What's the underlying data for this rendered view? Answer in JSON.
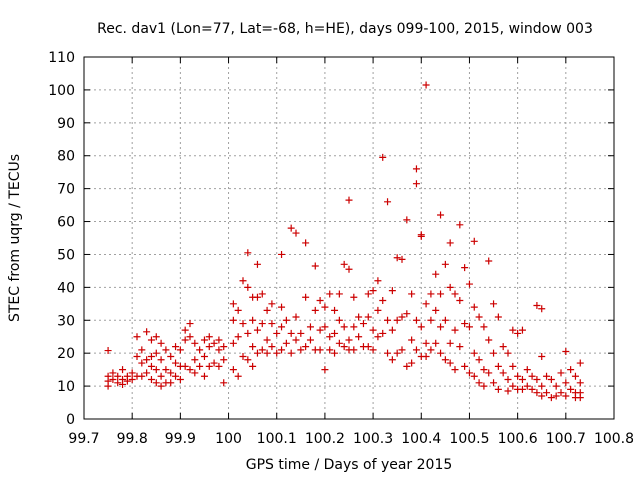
{
  "chart_data": {
    "type": "scatter",
    "title": "Rec. dav1 (Lon=77, Lat=-68, h=HE), days 099-100, 2015, window 003",
    "xlabel": "GPS time / Days of year 2015",
    "ylabel": "STEC from uqrg / TECUs",
    "xlim": [
      99.7,
      100.8
    ],
    "ylim": [
      0,
      110
    ],
    "xticks": [
      99.7,
      99.8,
      99.9,
      100,
      100.1,
      100.2,
      100.3,
      100.4,
      100.5,
      100.6,
      100.7,
      100.8
    ],
    "xtick_labels": [
      "99.7",
      "99.8",
      "99.9",
      "100",
      "100.1",
      "100.2",
      "100.3",
      "100.4",
      "100.5",
      "100.6",
      "100.7",
      "100.8"
    ],
    "yticks": [
      0,
      10,
      20,
      30,
      40,
      50,
      60,
      70,
      80,
      90,
      100,
      110
    ],
    "ytick_labels": [
      "0",
      "10",
      "20",
      "30",
      "40",
      "50",
      "60",
      "70",
      "80",
      "90",
      "100",
      "110"
    ],
    "grid": true,
    "marker": "plus",
    "color": "#cc0000",
    "points": [
      [
        99.75,
        20.8
      ],
      [
        99.75,
        13
      ],
      [
        99.75,
        11.5
      ],
      [
        99.75,
        10
      ],
      [
        99.76,
        14
      ],
      [
        99.76,
        12
      ],
      [
        99.77,
        13
      ],
      [
        99.77,
        11
      ],
      [
        99.78,
        15
      ],
      [
        99.78,
        12
      ],
      [
        99.78,
        10.5
      ],
      [
        99.79,
        13
      ],
      [
        99.79,
        11.5
      ],
      [
        99.8,
        14
      ],
      [
        99.8,
        12
      ],
      [
        99.81,
        25
      ],
      [
        99.81,
        19
      ],
      [
        99.81,
        13
      ],
      [
        99.82,
        21
      ],
      [
        99.82,
        17
      ],
      [
        99.82,
        13
      ],
      [
        99.83,
        26.5
      ],
      [
        99.83,
        18
      ],
      [
        99.83,
        14
      ],
      [
        99.84,
        24
      ],
      [
        99.84,
        19
      ],
      [
        99.84,
        16
      ],
      [
        99.84,
        12
      ],
      [
        99.85,
        25
      ],
      [
        99.85,
        20
      ],
      [
        99.85,
        15
      ],
      [
        99.85,
        11
      ],
      [
        99.86,
        23
      ],
      [
        99.86,
        18
      ],
      [
        99.86,
        13
      ],
      [
        99.86,
        10
      ],
      [
        99.87,
        21
      ],
      [
        99.87,
        15
      ],
      [
        99.87,
        11
      ],
      [
        99.88,
        19
      ],
      [
        99.88,
        14
      ],
      [
        99.88,
        11
      ],
      [
        99.89,
        22
      ],
      [
        99.89,
        17
      ],
      [
        99.89,
        13
      ],
      [
        99.9,
        21
      ],
      [
        99.9,
        16
      ],
      [
        99.9,
        12
      ],
      [
        99.91,
        27
      ],
      [
        99.91,
        24
      ],
      [
        99.91,
        16
      ],
      [
        99.92,
        29
      ],
      [
        99.92,
        25
      ],
      [
        99.92,
        15
      ],
      [
        99.93,
        23
      ],
      [
        99.93,
        18
      ],
      [
        99.93,
        14
      ],
      [
        99.94,
        21
      ],
      [
        99.94,
        16
      ],
      [
        99.95,
        24
      ],
      [
        99.95,
        19
      ],
      [
        99.95,
        13
      ],
      [
        99.96,
        25
      ],
      [
        99.96,
        22
      ],
      [
        99.96,
        16
      ],
      [
        99.97,
        23
      ],
      [
        99.97,
        17
      ],
      [
        99.98,
        24
      ],
      [
        99.98,
        21
      ],
      [
        99.98,
        16
      ],
      [
        99.99,
        22
      ],
      [
        99.99,
        18
      ],
      [
        99.99,
        11
      ],
      [
        100.01,
        35
      ],
      [
        100.01,
        30
      ],
      [
        100.01,
        23
      ],
      [
        100.01,
        15
      ],
      [
        100.02,
        33
      ],
      [
        100.02,
        25
      ],
      [
        100.02,
        13
      ],
      [
        100.03,
        42
      ],
      [
        100.03,
        29
      ],
      [
        100.03,
        19
      ],
      [
        100.04,
        50.5
      ],
      [
        100.04,
        40
      ],
      [
        100.04,
        26
      ],
      [
        100.04,
        18
      ],
      [
        100.05,
        37
      ],
      [
        100.05,
        30
      ],
      [
        100.05,
        22
      ],
      [
        100.05,
        16
      ],
      [
        100.06,
        47
      ],
      [
        100.06,
        37
      ],
      [
        100.06,
        27
      ],
      [
        100.06,
        20
      ],
      [
        100.07,
        38
      ],
      [
        100.07,
        29
      ],
      [
        100.07,
        21
      ],
      [
        100.08,
        33
      ],
      [
        100.08,
        24
      ],
      [
        100.08,
        20
      ],
      [
        100.09,
        35
      ],
      [
        100.09,
        29
      ],
      [
        100.09,
        22
      ],
      [
        100.1,
        26
      ],
      [
        100.1,
        20
      ],
      [
        100.11,
        50
      ],
      [
        100.11,
        34
      ],
      [
        100.11,
        28
      ],
      [
        100.11,
        21
      ],
      [
        100.12,
        30
      ],
      [
        100.12,
        23
      ],
      [
        100.13,
        58
      ],
      [
        100.13,
        26
      ],
      [
        100.13,
        20
      ],
      [
        100.14,
        56.5
      ],
      [
        100.14,
        31
      ],
      [
        100.14,
        24
      ],
      [
        100.15,
        26
      ],
      [
        100.15,
        21
      ],
      [
        100.16,
        53.5
      ],
      [
        100.16,
        37
      ],
      [
        100.16,
        22
      ],
      [
        100.17,
        28
      ],
      [
        100.17,
        24
      ],
      [
        100.18,
        46.5
      ],
      [
        100.18,
        33
      ],
      [
        100.18,
        21
      ],
      [
        100.19,
        36
      ],
      [
        100.19,
        27
      ],
      [
        100.19,
        21
      ],
      [
        100.2,
        34
      ],
      [
        100.2,
        28
      ],
      [
        100.2,
        15
      ],
      [
        100.21,
        38
      ],
      [
        100.21,
        25
      ],
      [
        100.21,
        21
      ],
      [
        100.22,
        33
      ],
      [
        100.22,
        26
      ],
      [
        100.22,
        20
      ],
      [
        100.23,
        38
      ],
      [
        100.23,
        30
      ],
      [
        100.23,
        23
      ],
      [
        100.24,
        47
      ],
      [
        100.24,
        28
      ],
      [
        100.24,
        22
      ],
      [
        100.25,
        66.5
      ],
      [
        100.25,
        45.5
      ],
      [
        100.25,
        24
      ],
      [
        100.25,
        21
      ],
      [
        100.26,
        37
      ],
      [
        100.26,
        28
      ],
      [
        100.26,
        21
      ],
      [
        100.27,
        31
      ],
      [
        100.27,
        25
      ],
      [
        100.28,
        29
      ],
      [
        100.28,
        22
      ],
      [
        100.29,
        38
      ],
      [
        100.29,
        31
      ],
      [
        100.29,
        22
      ],
      [
        100.3,
        39
      ],
      [
        100.3,
        27
      ],
      [
        100.3,
        21
      ],
      [
        100.31,
        42
      ],
      [
        100.31,
        33
      ],
      [
        100.31,
        25
      ],
      [
        100.32,
        79.5
      ],
      [
        100.32,
        36
      ],
      [
        100.32,
        26
      ],
      [
        100.33,
        66
      ],
      [
        100.33,
        30
      ],
      [
        100.33,
        20
      ],
      [
        100.34,
        39
      ],
      [
        100.34,
        27
      ],
      [
        100.34,
        18
      ],
      [
        100.35,
        49
      ],
      [
        100.35,
        30
      ],
      [
        100.35,
        20
      ],
      [
        100.36,
        48.5
      ],
      [
        100.36,
        31
      ],
      [
        100.36,
        21
      ],
      [
        100.37,
        60.5
      ],
      [
        100.37,
        32
      ],
      [
        100.37,
        16
      ],
      [
        100.38,
        38
      ],
      [
        100.38,
        24
      ],
      [
        100.38,
        17
      ],
      [
        100.39,
        76
      ],
      [
        100.39,
        71.5
      ],
      [
        100.39,
        30
      ],
      [
        100.39,
        21
      ],
      [
        100.4,
        56
      ],
      [
        100.4,
        55.5
      ],
      [
        100.4,
        28
      ],
      [
        100.4,
        19
      ],
      [
        100.41,
        101.5
      ],
      [
        100.41,
        35
      ],
      [
        100.41,
        23
      ],
      [
        100.41,
        19
      ],
      [
        100.42,
        38
      ],
      [
        100.42,
        30
      ],
      [
        100.42,
        21
      ],
      [
        100.43,
        44
      ],
      [
        100.43,
        33
      ],
      [
        100.43,
        23
      ],
      [
        100.44,
        62
      ],
      [
        100.44,
        38
      ],
      [
        100.44,
        28
      ],
      [
        100.44,
        20
      ],
      [
        100.45,
        47
      ],
      [
        100.45,
        30
      ],
      [
        100.45,
        18
      ],
      [
        100.46,
        53.5
      ],
      [
        100.46,
        40
      ],
      [
        100.46,
        23
      ],
      [
        100.46,
        17
      ],
      [
        100.47,
        38
      ],
      [
        100.47,
        27
      ],
      [
        100.47,
        15
      ],
      [
        100.48,
        59
      ],
      [
        100.48,
        36
      ],
      [
        100.48,
        22
      ],
      [
        100.49,
        46
      ],
      [
        100.49,
        29
      ],
      [
        100.49,
        16
      ],
      [
        100.5,
        41
      ],
      [
        100.5,
        28
      ],
      [
        100.5,
        14
      ],
      [
        100.51,
        54
      ],
      [
        100.51,
        34
      ],
      [
        100.51,
        20
      ],
      [
        100.51,
        13
      ],
      [
        100.52,
        31
      ],
      [
        100.52,
        18
      ],
      [
        100.52,
        11
      ],
      [
        100.53,
        28
      ],
      [
        100.53,
        15
      ],
      [
        100.53,
        10
      ],
      [
        100.54,
        48
      ],
      [
        100.54,
        24
      ],
      [
        100.54,
        14
      ],
      [
        100.55,
        35
      ],
      [
        100.55,
        20
      ],
      [
        100.55,
        11
      ],
      [
        100.56,
        31
      ],
      [
        100.56,
        16
      ],
      [
        100.56,
        9
      ],
      [
        100.57,
        22
      ],
      [
        100.57,
        14
      ],
      [
        100.58,
        20
      ],
      [
        100.58,
        12
      ],
      [
        100.58,
        8.5
      ],
      [
        100.59,
        27
      ],
      [
        100.59,
        16
      ],
      [
        100.59,
        10
      ],
      [
        100.6,
        26
      ],
      [
        100.6,
        13
      ],
      [
        100.6,
        9
      ],
      [
        100.61,
        27
      ],
      [
        100.61,
        12
      ],
      [
        100.61,
        9
      ],
      [
        100.62,
        15
      ],
      [
        100.62,
        10
      ],
      [
        100.63,
        13
      ],
      [
        100.63,
        9
      ],
      [
        100.64,
        34.5
      ],
      [
        100.64,
        12
      ],
      [
        100.64,
        8
      ],
      [
        100.65,
        33.5
      ],
      [
        100.65,
        19
      ],
      [
        100.65,
        10
      ],
      [
        100.65,
        7
      ],
      [
        100.66,
        13
      ],
      [
        100.66,
        8
      ],
      [
        100.67,
        12
      ],
      [
        100.67,
        6.5
      ],
      [
        100.68,
        10
      ],
      [
        100.68,
        7
      ],
      [
        100.69,
        14
      ],
      [
        100.69,
        8
      ],
      [
        100.7,
        20.5
      ],
      [
        100.7,
        11
      ],
      [
        100.7,
        7
      ],
      [
        100.71,
        15
      ],
      [
        100.71,
        9
      ],
      [
        100.72,
        13
      ],
      [
        100.72,
        8
      ],
      [
        100.72,
        6.5
      ],
      [
        100.73,
        17
      ],
      [
        100.73,
        11
      ],
      [
        100.73,
        8
      ],
      [
        100.73,
        6.5
      ]
    ]
  }
}
